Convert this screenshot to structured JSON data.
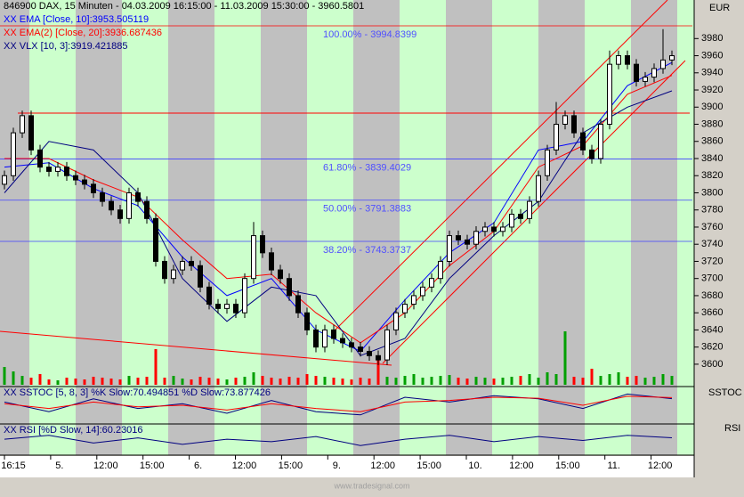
{
  "chart_data": [
    {
      "type": "candlestick",
      "title": "846900  DAX, 15 Minuten - 04.03.2009 16:15:00 - 11.03.2009 15:30:00 - 3960.5801",
      "unit": "EUR",
      "ylim": [
        3576,
        4025
      ],
      "yticks": [
        3600,
        3620,
        3640,
        3660,
        3680,
        3700,
        3720,
        3740,
        3760,
        3780,
        3800,
        3820,
        3840,
        3860,
        3880,
        3900,
        3920,
        3940,
        3960,
        3980
      ],
      "x_labels": [
        "16:15",
        "5.",
        "12:00",
        "15:00",
        "6.",
        "12:00",
        "15:00",
        "9.",
        "12:00",
        "15:00",
        "10.",
        "12:00",
        "15:00",
        "11.",
        "12:00"
      ],
      "series": [
        {
          "name": "XX EMA [Close, 10]:3953.505119",
          "color": "#0000ff",
          "values": [
            3830,
            3835,
            3805,
            3785,
            3725,
            3680,
            3700,
            3640,
            3615,
            3675,
            3730,
            3765,
            3850,
            3860,
            3925,
            3952
          ]
        },
        {
          "name": "XX EMA(2) [Close, 20]:3936.687436",
          "color": "#ff0000",
          "values": [
            3840,
            3840,
            3815,
            3795,
            3745,
            3700,
            3705,
            3660,
            3625,
            3660,
            3715,
            3755,
            3830,
            3855,
            3915,
            3937
          ]
        },
        {
          "name": "XX VLX [10, 3]:3919.421885",
          "color": "#000080",
          "values": [
            3800,
            3860,
            3850,
            3800,
            3700,
            3650,
            3690,
            3680,
            3610,
            3630,
            3700,
            3750,
            3790,
            3870,
            3900,
            3919
          ]
        }
      ],
      "levels": [
        {
          "label": "100.00% - 3994.8399",
          "value": 3994.8399
        },
        {
          "label": "61.80% - 3839.4029",
          "value": 3839.4029
        },
        {
          "label": "50.00% - 3791.3883",
          "value": 3791.3883
        },
        {
          "label": "38.20% - 3743.3737",
          "value": 3743.3737
        }
      ],
      "ohlc": [
        [
          3810,
          3826,
          3804,
          3820
        ],
        [
          3820,
          3876,
          3814,
          3870
        ],
        [
          3870,
          3896,
          3864,
          3890
        ],
        [
          3890,
          3896,
          3844,
          3850
        ],
        [
          3850,
          3856,
          3824,
          3830
        ],
        [
          3830,
          3836,
          3819,
          3825
        ],
        [
          3825,
          3836,
          3819,
          3830
        ],
        [
          3830,
          3836,
          3814,
          3820
        ],
        [
          3820,
          3826,
          3809,
          3815
        ],
        [
          3815,
          3821,
          3804,
          3810
        ],
        [
          3810,
          3816,
          3794,
          3800
        ],
        [
          3800,
          3806,
          3784,
          3790
        ],
        [
          3790,
          3796,
          3774,
          3780
        ],
        [
          3780,
          3786,
          3764,
          3770
        ],
        [
          3770,
          3806,
          3764,
          3800
        ],
        [
          3800,
          3806,
          3784,
          3790
        ],
        [
          3790,
          3796,
          3764,
          3770
        ],
        [
          3770,
          3776,
          3714,
          3720
        ],
        [
          3720,
          3726,
          3694,
          3700
        ],
        [
          3700,
          3716,
          3694,
          3710
        ],
        [
          3710,
          3726,
          3704,
          3720
        ],
        [
          3720,
          3726,
          3709,
          3715
        ],
        [
          3715,
          3721,
          3684,
          3690
        ],
        [
          3690,
          3696,
          3664,
          3670
        ],
        [
          3670,
          3676,
          3659,
          3665
        ],
        [
          3665,
          3676,
          3659,
          3670
        ],
        [
          3670,
          3676,
          3654,
          3660
        ],
        [
          3660,
          3706,
          3654,
          3700
        ],
        [
          3700,
          3766,
          3694,
          3750
        ],
        [
          3750,
          3756,
          3724,
          3730
        ],
        [
          3730,
          3736,
          3704,
          3710
        ],
        [
          3710,
          3716,
          3694,
          3700
        ],
        [
          3700,
          3706,
          3674,
          3680
        ],
        [
          3680,
          3686,
          3654,
          3660
        ],
        [
          3660,
          3666,
          3634,
          3640
        ],
        [
          3640,
          3646,
          3614,
          3620
        ],
        [
          3620,
          3646,
          3614,
          3640
        ],
        [
          3640,
          3646,
          3624,
          3630
        ],
        [
          3630,
          3636,
          3619,
          3625
        ],
        [
          3625,
          3631,
          3614,
          3620
        ],
        [
          3620,
          3626,
          3609,
          3615
        ],
        [
          3615,
          3621,
          3604,
          3610
        ],
        [
          3610,
          3616,
          3599,
          3605
        ],
        [
          3605,
          3646,
          3599,
          3640
        ],
        [
          3640,
          3666,
          3634,
          3660
        ],
        [
          3660,
          3676,
          3654,
          3670
        ],
        [
          3670,
          3686,
          3664,
          3680
        ],
        [
          3680,
          3696,
          3674,
          3690
        ],
        [
          3690,
          3706,
          3684,
          3700
        ],
        [
          3700,
          3726,
          3694,
          3720
        ],
        [
          3720,
          3756,
          3714,
          3750
        ],
        [
          3750,
          3756,
          3739,
          3745
        ],
        [
          3745,
          3751,
          3734,
          3740
        ],
        [
          3740,
          3761,
          3734,
          3755
        ],
        [
          3755,
          3766,
          3749,
          3760
        ],
        [
          3760,
          3766,
          3749,
          3755
        ],
        [
          3755,
          3766,
          3749,
          3760
        ],
        [
          3760,
          3781,
          3754,
          3775
        ],
        [
          3775,
          3781,
          3764,
          3770
        ],
        [
          3770,
          3796,
          3764,
          3790
        ],
        [
          3790,
          3826,
          3784,
          3820
        ],
        [
          3820,
          3856,
          3814,
          3850
        ],
        [
          3850,
          3906,
          3844,
          3880
        ],
        [
          3880,
          3896,
          3874,
          3890
        ],
        [
          3890,
          3896,
          3864,
          3870
        ],
        [
          3870,
          3876,
          3844,
          3850
        ],
        [
          3850,
          3856,
          3834,
          3840
        ],
        [
          3840,
          3886,
          3834,
          3880
        ],
        [
          3880,
          3966,
          3874,
          3950
        ],
        [
          3950,
          3966,
          3944,
          3960
        ],
        [
          3960,
          3966,
          3944,
          3950
        ],
        [
          3950,
          3956,
          3924,
          3930
        ],
        [
          3930,
          3941,
          3924,
          3935
        ],
        [
          3935,
          3951,
          3929,
          3945
        ],
        [
          3945,
          3991,
          3939,
          3955
        ],
        [
          3955,
          3966,
          3949,
          3960
        ]
      ],
      "volume": [
        20,
        15,
        10,
        8,
        12,
        6,
        5,
        8,
        7,
        6,
        9,
        8,
        7,
        6,
        10,
        8,
        9,
        40,
        8,
        10,
        7,
        6,
        9,
        8,
        7,
        6,
        8,
        9,
        14,
        10,
        8,
        7,
        9,
        8,
        12,
        10,
        9,
        8,
        7,
        6,
        8,
        7,
        30,
        9,
        8,
        10,
        12,
        8,
        9,
        10,
        11,
        8,
        7,
        9,
        8,
        7,
        8,
        9,
        10,
        12,
        8,
        14,
        12,
        60,
        9,
        8,
        18,
        10,
        12,
        14,
        9,
        10,
        8,
        9,
        12,
        10
      ],
      "vlim": [
        0,
        100
      ]
    },
    {
      "type": "line",
      "title": "XX SSTOC [5, 8, 3] %K Slow:70.494851 %D Slow:73.877426",
      "panel_label": "SSTOC",
      "ylim": [
        0,
        100
      ],
      "series": [
        {
          "color": "#000080",
          "values": [
            60,
            30,
            70,
            40,
            55,
            25,
            65,
            30,
            20,
            75,
            60,
            80,
            70,
            40,
            85,
            70.494851
          ]
        },
        {
          "color": "#ff0000",
          "values": [
            55,
            40,
            60,
            45,
            50,
            35,
            55,
            40,
            30,
            60,
            65,
            75,
            72,
            50,
            78,
            73.877426
          ]
        }
      ]
    },
    {
      "type": "line",
      "title": "XX RSI [%D Slow, 14]:60.23016",
      "panel_label": "RSI",
      "ylim": [
        0,
        100
      ],
      "series": [
        {
          "color": "#000080",
          "values": [
            55,
            70,
            40,
            60,
            35,
            55,
            45,
            65,
            30,
            55,
            70,
            45,
            65,
            50,
            70,
            60.23016
          ]
        }
      ]
    }
  ]
}
